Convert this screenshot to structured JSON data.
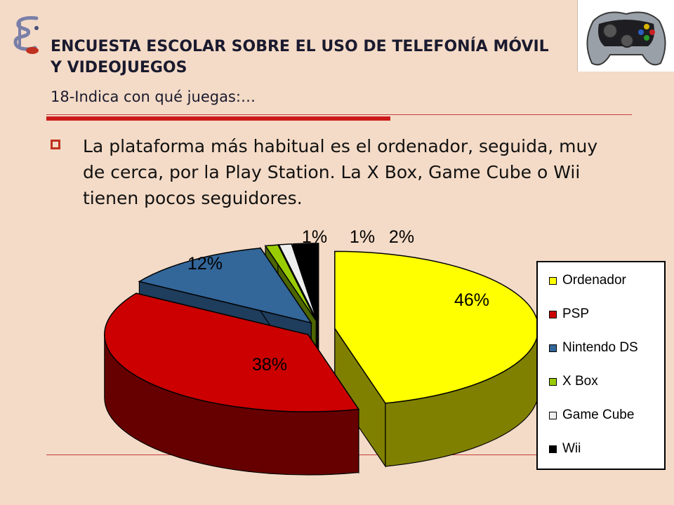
{
  "header": {
    "title": "ENCUESTA ESCOLAR SOBRE EL USO DE TELEFONÍA MÓVIL Y VIDEOJUEGOS",
    "subtitle": "18-Indica con qué juegas:…"
  },
  "body": {
    "bullet": "La plataforma más habitual es el ordenador, seguida, muy de cerca, por la Play Station. La X Box, Game Cube o Wii tienen pocos seguidores."
  },
  "icons": {
    "logo": "stylized-e-logo-icon",
    "controller": "gamepad-icon"
  },
  "colors": {
    "accent": "#cc1a1a",
    "background": "#f4dbc7"
  },
  "chart_data": {
    "type": "pie",
    "title": "",
    "categories": [
      "Ordenador",
      "PSP",
      "Nintendo DS",
      "X Box",
      "Game Cube",
      "Wii"
    ],
    "values": [
      46,
      38,
      12,
      1,
      1,
      2
    ],
    "data_labels": [
      "46%",
      "38%",
      "12%",
      "1%",
      "1%",
      "2%"
    ],
    "colors": [
      "#ffff00",
      "#cc0000",
      "#336699",
      "#99cc00",
      "#eeeeee",
      "#000000"
    ],
    "side_colors": [
      "#808000",
      "#660000",
      "#1f3d5c",
      "#4d6600",
      "#999999",
      "#000000"
    ],
    "three_d": true,
    "exploded": true,
    "legend": {
      "position": "right"
    }
  }
}
